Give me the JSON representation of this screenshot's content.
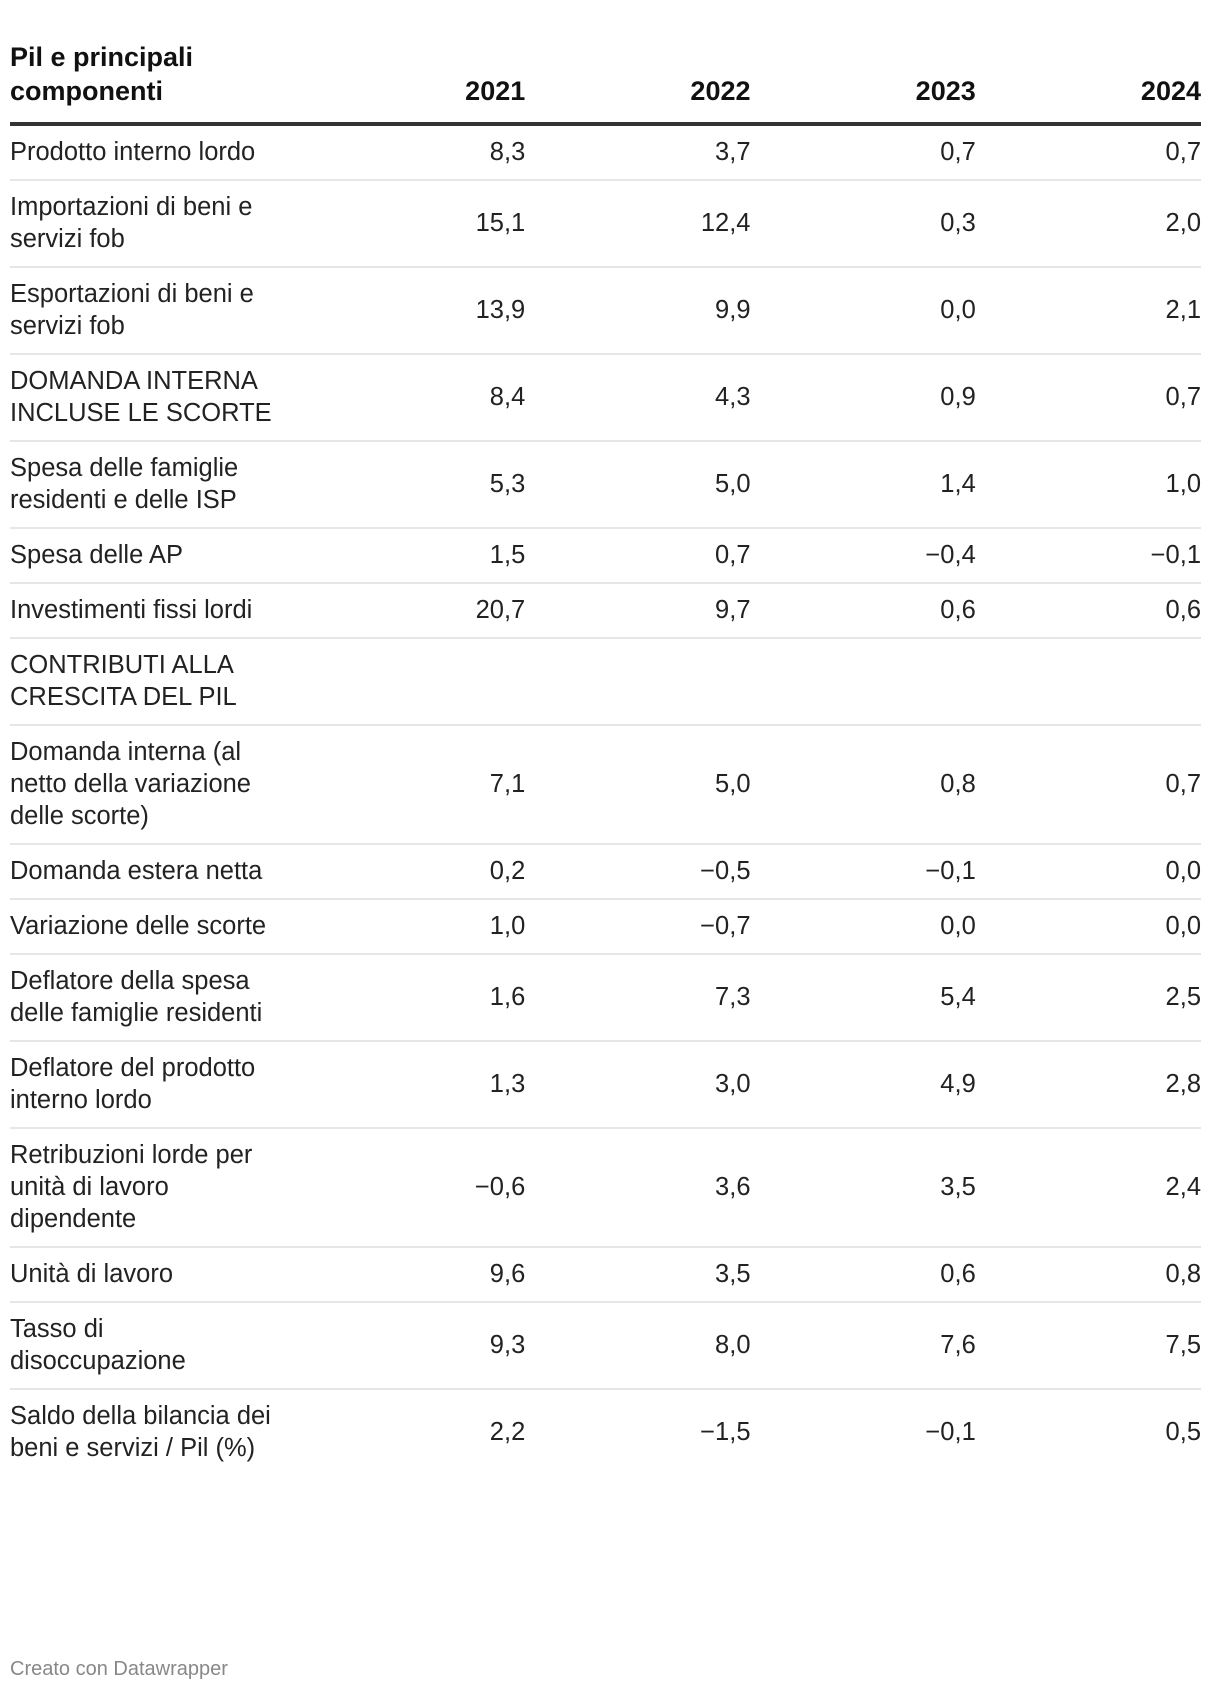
{
  "table": {
    "header": [
      "Pil e principali componenti",
      "2021",
      "2022",
      "2023",
      "2024"
    ],
    "rows": [
      [
        "Prodotto interno lordo",
        "8,3",
        "3,7",
        "0,7",
        "0,7"
      ],
      [
        "Importazioni di beni e servizi fob",
        "15,1",
        "12,4",
        "0,3",
        "2,0"
      ],
      [
        "Esportazioni di beni e servizi fob",
        "13,9",
        "9,9",
        "0,0",
        "2,1"
      ],
      [
        "DOMANDA INTERNA INCLUSE LE SCORTE",
        "8,4",
        "4,3",
        "0,9",
        "0,7"
      ],
      [
        "Spesa delle famiglie residenti e delle ISP",
        "5,3",
        "5,0",
        "1,4",
        "1,0"
      ],
      [
        "Spesa delle AP",
        "1,5",
        "0,7",
        "−0,4",
        "−0,1"
      ],
      [
        "Investimenti fissi lordi",
        "20,7",
        "9,7",
        "0,6",
        "0,6"
      ],
      [
        "CONTRIBUTI ALLA CRESCITA DEL PIL",
        "",
        "",
        "",
        ""
      ],
      [
        "Domanda interna (al netto della variazione delle scorte)",
        "7,1",
        "5,0",
        "0,8",
        "0,7"
      ],
      [
        "Domanda estera netta",
        "0,2",
        "−0,5",
        "−0,1",
        "0,0"
      ],
      [
        "Variazione delle scorte",
        "1,0",
        "−0,7",
        "0,0",
        "0,0"
      ],
      [
        "Deflatore della spesa delle famiglie residenti",
        "1,6",
        "7,3",
        "5,4",
        "2,5"
      ],
      [
        "Deflatore del prodotto interno lordo",
        "1,3",
        "3,0",
        "4,9",
        "2,8"
      ],
      [
        "Retribuzioni lorde per unità di lavoro dipendente",
        "−0,6",
        "3,6",
        "3,5",
        "2,4"
      ],
      [
        "Unità di lavoro",
        "9,6",
        "3,5",
        "0,6",
        "0,8"
      ],
      [
        "Tasso di disoccupazione",
        "9,3",
        "8,0",
        "7,6",
        "7,5"
      ],
      [
        "Saldo della bilancia dei beni e servizi / Pil (%)",
        "2,2",
        "−1,5",
        "−0,1",
        "0,5"
      ]
    ]
  },
  "footer": "Creato con Datawrapper"
}
